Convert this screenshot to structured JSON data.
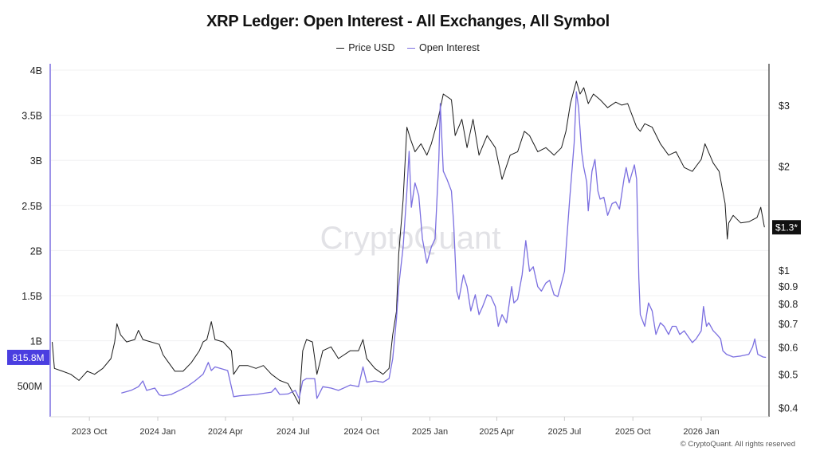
{
  "chart_data": {
    "type": "line",
    "title": "XRP Ledger: Open Interest - All Exchanges, All Symbol",
    "legend_placement": "top-center",
    "grid": true,
    "watermark": "CryptoQuant",
    "copyright": "© CryptoQuant. All rights reserved",
    "x_ticks": [
      "2023 Oct",
      "2024 Jan",
      "2024 Apr",
      "2024 Jul",
      "2024 Oct",
      "2025 Jan",
      "2025 Apr",
      "2025 Jul",
      "2025 Oct",
      "2026 Jan"
    ],
    "x_tick_dates": [
      "2023-10-01",
      "2024-01-01",
      "2024-04-01",
      "2024-07-01",
      "2024-10-01",
      "2025-01-01",
      "2025-04-01",
      "2025-07-01",
      "2025-10-01",
      "2026-01-01"
    ],
    "left_axis": {
      "scale": "linear",
      "ylim_billions": [
        0.33,
        4.07
      ],
      "ticks": [
        "4B",
        "3.5B",
        "3B",
        "2.5B",
        "2B",
        "1.5B",
        "1B",
        "500M"
      ],
      "tick_values": [
        4,
        3.5,
        3,
        2.5,
        2,
        1.5,
        1,
        0.5
      ],
      "current_label": "815.8M",
      "current_value": 0.8158,
      "color": "#4a3ee0"
    },
    "right_axis": {
      "scale": "log",
      "ylim_usd": [
        0.38,
        3.8
      ],
      "ticks": [
        "$3",
        "$2",
        "$1",
        "$0.9",
        "$0.8",
        "$0.7",
        "$0.6",
        "$0.5",
        "$0.4"
      ],
      "tick_values": [
        3,
        2,
        1,
        0.9,
        0.8,
        0.7,
        0.6,
        0.5,
        0.4
      ],
      "current_label": "$1.3*",
      "current_value": 1.33
    },
    "series": [
      {
        "name": "Price USD",
        "axis": "right",
        "unit": "USD",
        "color": "#1a1a1a",
        "points": [
          [
            "2023-08-12",
            0.62
          ],
          [
            "2023-08-15",
            0.52
          ],
          [
            "2023-08-26",
            0.51
          ],
          [
            "2023-09-06",
            0.5
          ],
          [
            "2023-09-17",
            0.48
          ],
          [
            "2023-09-28",
            0.51
          ],
          [
            "2023-10-08",
            0.5
          ],
          [
            "2023-10-19",
            0.52
          ],
          [
            "2023-10-30",
            0.555
          ],
          [
            "2023-11-04",
            0.62
          ],
          [
            "2023-11-07",
            0.7
          ],
          [
            "2023-11-12",
            0.65
          ],
          [
            "2023-11-20",
            0.62
          ],
          [
            "2023-12-01",
            0.63
          ],
          [
            "2023-12-06",
            0.67
          ],
          [
            "2023-12-12",
            0.63
          ],
          [
            "2023-12-23",
            0.62
          ],
          [
            "2024-01-03",
            0.61
          ],
          [
            "2024-01-08",
            0.57
          ],
          [
            "2024-01-13",
            0.55
          ],
          [
            "2024-01-24",
            0.51
          ],
          [
            "2024-02-04",
            0.51
          ],
          [
            "2024-02-15",
            0.54
          ],
          [
            "2024-02-26",
            0.585
          ],
          [
            "2024-03-02",
            0.62
          ],
          [
            "2024-03-07",
            0.63
          ],
          [
            "2024-03-13",
            0.71
          ],
          [
            "2024-03-18",
            0.63
          ],
          [
            "2024-03-29",
            0.62
          ],
          [
            "2024-04-09",
            0.585
          ],
          [
            "2024-04-12",
            0.5
          ],
          [
            "2024-04-20",
            0.53
          ],
          [
            "2024-05-01",
            0.53
          ],
          [
            "2024-05-12",
            0.52
          ],
          [
            "2024-05-22",
            0.53
          ],
          [
            "2024-06-02",
            0.5
          ],
          [
            "2024-06-13",
            0.48
          ],
          [
            "2024-06-24",
            0.47
          ],
          [
            "2024-07-04",
            0.43
          ],
          [
            "2024-07-09",
            0.41
          ],
          [
            "2024-07-14",
            0.585
          ],
          [
            "2024-07-19",
            0.63
          ],
          [
            "2024-07-27",
            0.62
          ],
          [
            "2024-08-02",
            0.5
          ],
          [
            "2024-08-10",
            0.585
          ],
          [
            "2024-08-21",
            0.6
          ],
          [
            "2024-08-31",
            0.555
          ],
          [
            "2024-09-16",
            0.585
          ],
          [
            "2024-09-27",
            0.585
          ],
          [
            "2024-10-03",
            0.63
          ],
          [
            "2024-10-08",
            0.555
          ],
          [
            "2024-10-19",
            0.52
          ],
          [
            "2024-10-30",
            0.5
          ],
          [
            "2024-11-07",
            0.52
          ],
          [
            "2024-11-12",
            0.65
          ],
          [
            "2024-11-17",
            0.76
          ],
          [
            "2024-11-20",
            1.11
          ],
          [
            "2024-11-26",
            1.6
          ],
          [
            "2024-12-01",
            2.59
          ],
          [
            "2024-12-06",
            2.39
          ],
          [
            "2024-12-12",
            2.2
          ],
          [
            "2024-12-20",
            2.32
          ],
          [
            "2024-12-28",
            2.15
          ],
          [
            "2025-01-03",
            2.32
          ],
          [
            "2025-01-12",
            2.73
          ],
          [
            "2025-01-19",
            3.23
          ],
          [
            "2025-01-30",
            3.11
          ],
          [
            "2025-02-04",
            2.45
          ],
          [
            "2025-02-13",
            2.73
          ],
          [
            "2025-02-20",
            2.26
          ],
          [
            "2025-02-28",
            2.73
          ],
          [
            "2025-03-08",
            2.15
          ],
          [
            "2025-03-19",
            2.45
          ],
          [
            "2025-03-30",
            2.26
          ],
          [
            "2025-04-08",
            1.83
          ],
          [
            "2025-04-19",
            2.15
          ],
          [
            "2025-04-29",
            2.2
          ],
          [
            "2025-05-08",
            2.52
          ],
          [
            "2025-05-15",
            2.45
          ],
          [
            "2025-05-26",
            2.2
          ],
          [
            "2025-06-06",
            2.26
          ],
          [
            "2025-06-17",
            2.15
          ],
          [
            "2025-06-27",
            2.26
          ],
          [
            "2025-07-03",
            2.52
          ],
          [
            "2025-07-09",
            3.03
          ],
          [
            "2025-07-17",
            3.52
          ],
          [
            "2025-07-22",
            3.23
          ],
          [
            "2025-07-27",
            3.37
          ],
          [
            "2025-08-02",
            3.03
          ],
          [
            "2025-08-09",
            3.23
          ],
          [
            "2025-08-18",
            3.11
          ],
          [
            "2025-08-28",
            2.95
          ],
          [
            "2025-09-08",
            3.06
          ],
          [
            "2025-09-16",
            3.0
          ],
          [
            "2025-09-24",
            3.03
          ],
          [
            "2025-10-06",
            2.59
          ],
          [
            "2025-10-11",
            2.52
          ],
          [
            "2025-10-17",
            2.65
          ],
          [
            "2025-10-27",
            2.59
          ],
          [
            "2025-11-07",
            2.32
          ],
          [
            "2025-11-18",
            2.15
          ],
          [
            "2025-11-28",
            2.2
          ],
          [
            "2025-12-09",
            1.98
          ],
          [
            "2025-12-20",
            1.93
          ],
          [
            "2026-01-01",
            2.09
          ],
          [
            "2026-01-06",
            2.32
          ],
          [
            "2026-01-17",
            2.04
          ],
          [
            "2026-01-25",
            1.93
          ],
          [
            "2026-02-02",
            1.56
          ],
          [
            "2026-02-05",
            1.23
          ],
          [
            "2026-02-07",
            1.37
          ],
          [
            "2026-02-13",
            1.44
          ],
          [
            "2026-02-23",
            1.37
          ],
          [
            "2026-03-06",
            1.38
          ],
          [
            "2026-03-17",
            1.42
          ],
          [
            "2026-03-22",
            1.52
          ],
          [
            "2026-03-27",
            1.33
          ]
        ]
      },
      {
        "name": "Open Interest",
        "axis": "left",
        "unit": "billions",
        "color": "#7b6fe0",
        "points": [
          [
            "2023-11-13",
            0.42
          ],
          [
            "2023-11-26",
            0.45
          ],
          [
            "2023-12-06",
            0.49
          ],
          [
            "2023-12-12",
            0.555
          ],
          [
            "2023-12-17",
            0.45
          ],
          [
            "2023-12-28",
            0.475
          ],
          [
            "2024-01-03",
            0.4
          ],
          [
            "2024-01-08",
            0.39
          ],
          [
            "2024-01-19",
            0.405
          ],
          [
            "2024-01-30",
            0.45
          ],
          [
            "2024-02-09",
            0.49
          ],
          [
            "2024-02-20",
            0.555
          ],
          [
            "2024-03-02",
            0.63
          ],
          [
            "2024-03-09",
            0.76
          ],
          [
            "2024-03-13",
            0.67
          ],
          [
            "2024-03-18",
            0.71
          ],
          [
            "2024-04-04",
            0.67
          ],
          [
            "2024-04-12",
            0.38
          ],
          [
            "2024-04-20",
            0.39
          ],
          [
            "2024-05-12",
            0.405
          ],
          [
            "2024-06-02",
            0.43
          ],
          [
            "2024-06-07",
            0.475
          ],
          [
            "2024-06-13",
            0.405
          ],
          [
            "2024-06-24",
            0.41
          ],
          [
            "2024-07-04",
            0.45
          ],
          [
            "2024-07-09",
            0.36
          ],
          [
            "2024-07-14",
            0.555
          ],
          [
            "2024-07-19",
            0.58
          ],
          [
            "2024-07-30",
            0.58
          ],
          [
            "2024-08-02",
            0.36
          ],
          [
            "2024-08-10",
            0.49
          ],
          [
            "2024-08-21",
            0.475
          ],
          [
            "2024-08-31",
            0.45
          ],
          [
            "2024-09-11",
            0.49
          ],
          [
            "2024-09-16",
            0.51
          ],
          [
            "2024-09-27",
            0.49
          ],
          [
            "2024-10-03",
            0.71
          ],
          [
            "2024-10-08",
            0.54
          ],
          [
            "2024-10-19",
            0.555
          ],
          [
            "2024-10-30",
            0.54
          ],
          [
            "2024-11-07",
            0.58
          ],
          [
            "2024-11-12",
            0.8
          ],
          [
            "2024-11-17",
            1.24
          ],
          [
            "2024-11-20",
            1.6
          ],
          [
            "2024-11-26",
            2.04
          ],
          [
            "2024-12-01",
            2.66
          ],
          [
            "2024-12-04",
            3.1
          ],
          [
            "2024-12-07",
            2.48
          ],
          [
            "2024-12-12",
            2.75
          ],
          [
            "2024-12-17",
            2.61
          ],
          [
            "2024-12-22",
            2.13
          ],
          [
            "2024-12-28",
            1.86
          ],
          [
            "2025-01-03",
            2.04
          ],
          [
            "2025-01-08",
            2.13
          ],
          [
            "2025-01-13",
            3.01
          ],
          [
            "2025-01-15",
            3.63
          ],
          [
            "2025-01-19",
            2.88
          ],
          [
            "2025-01-24",
            2.79
          ],
          [
            "2025-01-30",
            2.66
          ],
          [
            "2025-02-02",
            2.3
          ],
          [
            "2025-02-06",
            1.55
          ],
          [
            "2025-02-09",
            1.46
          ],
          [
            "2025-02-15",
            1.73
          ],
          [
            "2025-02-20",
            1.6
          ],
          [
            "2025-02-25",
            1.33
          ],
          [
            "2025-03-03",
            1.51
          ],
          [
            "2025-03-08",
            1.29
          ],
          [
            "2025-03-13",
            1.38
          ],
          [
            "2025-03-19",
            1.51
          ],
          [
            "2025-03-24",
            1.49
          ],
          [
            "2025-03-30",
            1.38
          ],
          [
            "2025-04-03",
            1.16
          ],
          [
            "2025-04-08",
            1.29
          ],
          [
            "2025-04-14",
            1.2
          ],
          [
            "2025-04-21",
            1.6
          ],
          [
            "2025-04-24",
            1.42
          ],
          [
            "2025-04-29",
            1.46
          ],
          [
            "2025-05-05",
            1.73
          ],
          [
            "2025-05-10",
            2.11
          ],
          [
            "2025-05-15",
            1.77
          ],
          [
            "2025-05-20",
            1.82
          ],
          [
            "2025-05-26",
            1.6
          ],
          [
            "2025-05-31",
            1.55
          ],
          [
            "2025-06-06",
            1.64
          ],
          [
            "2025-06-11",
            1.67
          ],
          [
            "2025-06-17",
            1.51
          ],
          [
            "2025-06-22",
            1.49
          ],
          [
            "2025-06-27",
            1.64
          ],
          [
            "2025-07-01",
            1.77
          ],
          [
            "2025-07-04",
            2.11
          ],
          [
            "2025-07-08",
            2.57
          ],
          [
            "2025-07-14",
            3.19
          ],
          [
            "2025-07-17",
            3.76
          ],
          [
            "2025-07-20",
            3.58
          ],
          [
            "2025-07-24",
            3.1
          ],
          [
            "2025-07-27",
            2.92
          ],
          [
            "2025-07-31",
            2.76
          ],
          [
            "2025-08-02",
            2.44
          ],
          [
            "2025-08-07",
            2.88
          ],
          [
            "2025-08-11",
            3.01
          ],
          [
            "2025-08-15",
            2.66
          ],
          [
            "2025-08-18",
            2.57
          ],
          [
            "2025-08-23",
            2.59
          ],
          [
            "2025-08-28",
            2.39
          ],
          [
            "2025-09-03",
            2.52
          ],
          [
            "2025-09-08",
            2.54
          ],
          [
            "2025-09-13",
            2.46
          ],
          [
            "2025-09-19",
            2.79
          ],
          [
            "2025-09-22",
            2.92
          ],
          [
            "2025-09-26",
            2.75
          ],
          [
            "2025-10-03",
            2.95
          ],
          [
            "2025-10-06",
            2.79
          ],
          [
            "2025-10-09",
            1.69
          ],
          [
            "2025-10-11",
            1.29
          ],
          [
            "2025-10-17",
            1.16
          ],
          [
            "2025-10-22",
            1.42
          ],
          [
            "2025-10-27",
            1.33
          ],
          [
            "2025-11-01",
            1.07
          ],
          [
            "2025-11-07",
            1.2
          ],
          [
            "2025-11-12",
            1.16
          ],
          [
            "2025-11-18",
            1.07
          ],
          [
            "2025-11-23",
            1.16
          ],
          [
            "2025-11-28",
            1.16
          ],
          [
            "2025-12-03",
            1.07
          ],
          [
            "2025-12-09",
            1.11
          ],
          [
            "2025-12-20",
            0.98
          ],
          [
            "2025-12-25",
            1.02
          ],
          [
            "2026-01-01",
            1.11
          ],
          [
            "2026-01-04",
            1.38
          ],
          [
            "2026-01-08",
            1.16
          ],
          [
            "2026-01-11",
            1.2
          ],
          [
            "2026-01-17",
            1.11
          ],
          [
            "2026-01-22",
            1.07
          ],
          [
            "2026-01-27",
            1.02
          ],
          [
            "2026-01-30",
            0.89
          ],
          [
            "2026-02-04",
            0.85
          ],
          [
            "2026-02-13",
            0.82
          ],
          [
            "2026-02-23",
            0.83
          ],
          [
            "2026-03-06",
            0.85
          ],
          [
            "2026-03-11",
            0.93
          ],
          [
            "2026-03-14",
            1.02
          ],
          [
            "2026-03-18",
            0.85
          ],
          [
            "2026-03-25",
            0.82
          ],
          [
            "2026-03-29",
            0.8158
          ]
        ]
      }
    ]
  }
}
